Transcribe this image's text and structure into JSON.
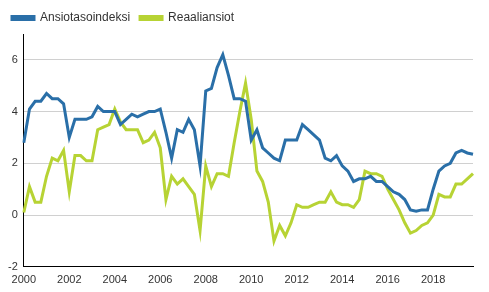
{
  "chart_data": {
    "type": "line",
    "categories": [
      "2000",
      null,
      null,
      null,
      null,
      null,
      null,
      null,
      "2002",
      null,
      null,
      null,
      null,
      null,
      null,
      null,
      "2004",
      null,
      null,
      null,
      null,
      null,
      null,
      null,
      "2006",
      null,
      null,
      null,
      null,
      null,
      null,
      null,
      "2008",
      null,
      null,
      null,
      null,
      null,
      null,
      null,
      "2010",
      null,
      null,
      null,
      null,
      null,
      null,
      null,
      "2012",
      null,
      null,
      null,
      null,
      null,
      null,
      null,
      "2014",
      null,
      null,
      null,
      null,
      null,
      null,
      null,
      "2016",
      null,
      null,
      null,
      null,
      null,
      null,
      null,
      "2018",
      null,
      null,
      null,
      null,
      null,
      null,
      null
    ],
    "series": [
      {
        "name": "Ansiotasoindeksi",
        "color": "#2a6fa8",
        "values": [
          2.8,
          4.1,
          4.4,
          4.4,
          4.7,
          4.5,
          4.5,
          4.3,
          3.0,
          3.7,
          3.7,
          3.7,
          3.8,
          4.2,
          4.0,
          4.0,
          4.0,
          3.5,
          3.7,
          3.9,
          3.8,
          3.9,
          4.0,
          4.0,
          4.1,
          3.2,
          2.2,
          3.3,
          3.2,
          3.7,
          3.3,
          1.9,
          4.8,
          4.9,
          5.7,
          6.2,
          5.4,
          4.5,
          4.5,
          4.4,
          2.9,
          3.3,
          2.6,
          2.4,
          2.2,
          2.1,
          2.9,
          2.9,
          2.9,
          3.5,
          3.3,
          3.1,
          2.9,
          2.2,
          2.1,
          2.3,
          1.9,
          1.7,
          1.3,
          1.4,
          1.4,
          1.5,
          1.3,
          1.3,
          1.1,
          0.9,
          0.8,
          0.6,
          0.2,
          0.15,
          0.2,
          0.2,
          1.0,
          1.7,
          1.9,
          2.0,
          2.4,
          2.5,
          2.4,
          2.35
        ]
      },
      {
        "name": "Reaaliansiot",
        "color": "#b7d334",
        "values": [
          0.1,
          1.1,
          0.5,
          0.5,
          1.5,
          2.2,
          2.1,
          2.5,
          0.9,
          2.3,
          2.3,
          2.1,
          2.1,
          3.3,
          3.4,
          3.5,
          4.1,
          3.6,
          3.3,
          3.3,
          3.3,
          2.8,
          2.9,
          3.2,
          2.6,
          0.6,
          1.5,
          1.2,
          1.4,
          1.1,
          0.8,
          -0.6,
          1.9,
          1.1,
          1.6,
          1.6,
          1.5,
          2.8,
          4.0,
          5.1,
          3.7,
          1.7,
          1.3,
          0.5,
          -1.0,
          -0.4,
          -0.8,
          -0.3,
          0.4,
          0.3,
          0.3,
          0.4,
          0.5,
          0.5,
          0.9,
          0.5,
          0.4,
          0.4,
          0.3,
          0.6,
          1.7,
          1.6,
          1.6,
          1.5,
          1.0,
          0.6,
          0.2,
          -0.3,
          -0.7,
          -0.6,
          -0.4,
          -0.3,
          0.0,
          0.8,
          0.7,
          0.7,
          1.2,
          1.2,
          1.4,
          1.6
        ]
      }
    ],
    "ylim": [
      -2,
      7
    ],
    "yticks": [
      -2,
      0,
      2,
      4,
      6
    ],
    "grid": true,
    "legend": "top-left"
  }
}
